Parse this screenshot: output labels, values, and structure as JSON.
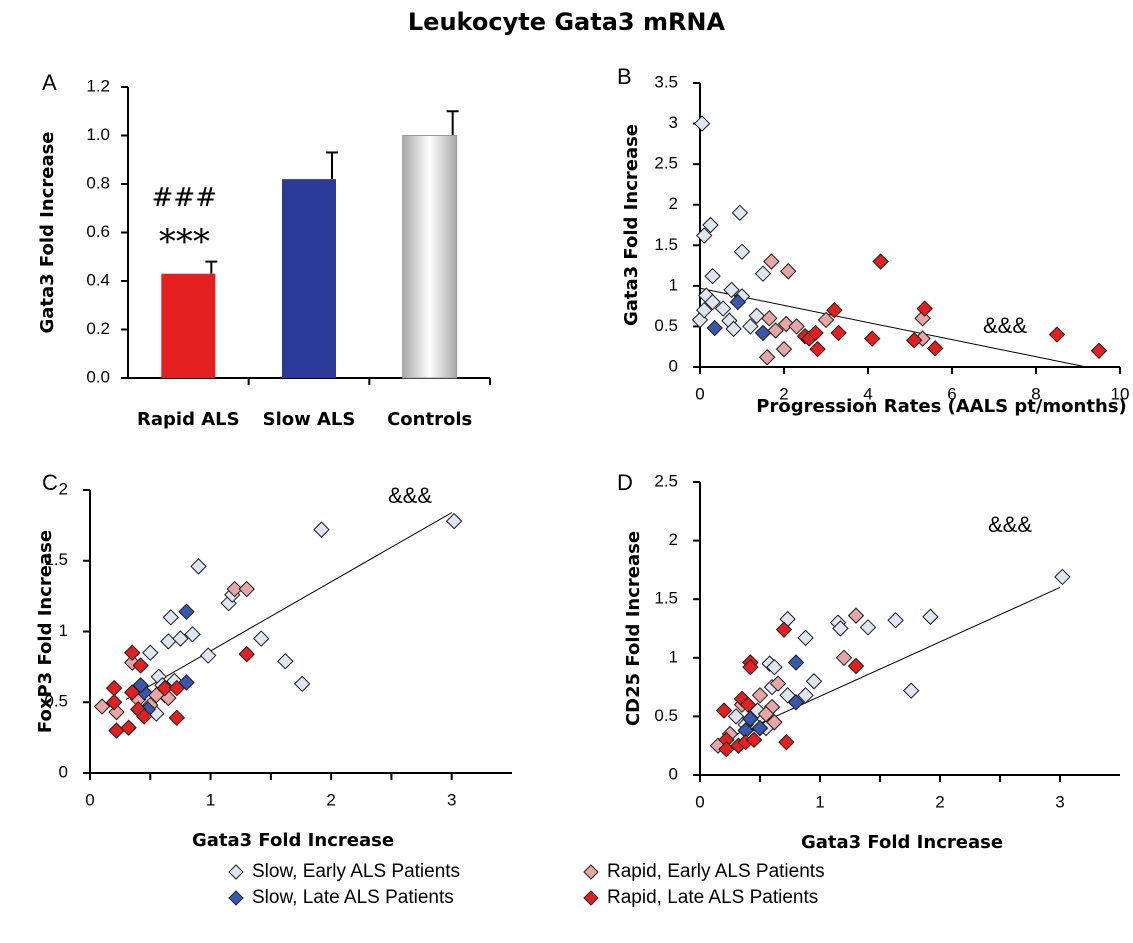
{
  "figure_title": "Leukocyte Gata3 mRNA",
  "legend": [
    {
      "label": "Slow, Early ALS Patients",
      "fill": "#dfe6f3",
      "icon": "diamond-marker-icon"
    },
    {
      "label": "Rapid, Early ALS Patients",
      "fill": "#e6a6a6",
      "icon": "diamond-marker-icon"
    },
    {
      "label": "Slow, Late ALS Patients",
      "fill": "#3a57b0",
      "icon": "diamond-marker-icon"
    },
    {
      "label": "Rapid, Late ALS Patients",
      "fill": "#e41f1f",
      "icon": "diamond-marker-icon"
    }
  ],
  "chart_data": [
    {
      "panel": "A",
      "type": "bar",
      "categories": [
        "Rapid ALS",
        "Slow ALS",
        "Controls"
      ],
      "values": [
        0.43,
        0.82,
        1.0
      ],
      "errors": [
        0.05,
        0.11,
        0.1
      ],
      "colors": [
        "#e41f1f",
        "#2b3a96",
        "#c8c8c8"
      ],
      "ylabel": "Gata3 Fold Increase",
      "ylim": [
        0,
        1.2
      ],
      "yticks": [
        "0.0",
        "0.2",
        "0.4",
        "0.6",
        "0.8",
        "1.0",
        "1.2"
      ],
      "annotations": [
        "###",
        "***"
      ],
      "grid": false
    },
    {
      "panel": "B",
      "type": "scatter",
      "xlabel": "Progression Rates (AALS pt/months)",
      "ylabel": "Gata3 Fold Increase",
      "xlim": [
        0,
        10
      ],
      "ylim": [
        0,
        3.5
      ],
      "xticks": [
        "0",
        "2",
        "4",
        "6",
        "8",
        "10"
      ],
      "yticks": [
        "0",
        "0.5",
        "1",
        "1.5",
        "2",
        "2.5",
        "3",
        "3.5"
      ],
      "annotation": "&&&",
      "trendline": [
        [
          0,
          0.97
        ],
        [
          9.2,
          0
        ]
      ],
      "series": [
        {
          "group": "slow-early",
          "points": [
            [
              0.05,
              3.0
            ],
            [
              0.1,
              1.62
            ],
            [
              0.25,
              1.75
            ],
            [
              0.95,
              1.9
            ],
            [
              0.3,
              1.12
            ],
            [
              1.0,
              1.42
            ],
            [
              1.5,
              1.15
            ],
            [
              0,
              0.58
            ],
            [
              0.1,
              0.7
            ],
            [
              0.15,
              0.88
            ],
            [
              0.3,
              0.8
            ],
            [
              0.55,
              0.72
            ],
            [
              0.7,
              0.57
            ],
            [
              0.8,
              0.47
            ],
            [
              0.75,
              0.95
            ],
            [
              1.0,
              0.87
            ],
            [
              1.2,
              0.5
            ],
            [
              1.35,
              0.63
            ]
          ]
        },
        {
          "group": "rapid-early",
          "points": [
            [
              1.7,
              1.3
            ],
            [
              2.1,
              1.18
            ],
            [
              1.6,
              0.12
            ],
            [
              2.0,
              0.22
            ],
            [
              1.65,
              0.6
            ],
            [
              1.8,
              0.45
            ],
            [
              2.05,
              0.53
            ],
            [
              2.3,
              0.5
            ],
            [
              3.0,
              0.58
            ],
            [
              5.3,
              0.6
            ],
            [
              5.3,
              0.35
            ]
          ]
        },
        {
          "group": "slow-late",
          "points": [
            [
              0.35,
              0.48
            ],
            [
              0.9,
              0.8
            ],
            [
              1.5,
              0.42
            ]
          ]
        },
        {
          "group": "rapid-late",
          "points": [
            [
              2.5,
              0.38
            ],
            [
              2.6,
              0.35
            ],
            [
              2.75,
              0.42
            ],
            [
              2.8,
              0.22
            ],
            [
              3.2,
              0.7
            ],
            [
              3.3,
              0.42
            ],
            [
              4.1,
              0.35
            ],
            [
              4.3,
              1.3
            ],
            [
              5.1,
              0.33
            ],
            [
              5.35,
              0.72
            ],
            [
              5.6,
              0.23
            ],
            [
              8.5,
              0.4
            ],
            [
              9.5,
              0.2
            ]
          ]
        }
      ]
    },
    {
      "panel": "C",
      "type": "scatter",
      "xlabel": "Gata3 Fold Increase",
      "ylabel": "FoxP3 Fold Increase",
      "xlim": [
        0,
        3.5
      ],
      "ylim": [
        0,
        2
      ],
      "xticks": [
        "0",
        "1",
        "2",
        "3"
      ],
      "yticks": [
        "0",
        "0.5",
        "1",
        "1.5",
        "2"
      ],
      "annotation": "&&&",
      "trendline": [
        [
          0.3,
          0.52
        ],
        [
          3.0,
          1.84
        ]
      ],
      "series": [
        {
          "group": "slow-early",
          "points": [
            [
              3.02,
              1.78
            ],
            [
              1.92,
              1.72
            ],
            [
              0.9,
              1.46
            ],
            [
              1.15,
              1.2
            ],
            [
              1.18,
              1.26
            ],
            [
              1.42,
              0.95
            ],
            [
              1.62,
              0.79
            ],
            [
              1.76,
              0.63
            ],
            [
              0.98,
              0.83
            ],
            [
              0.65,
              0.93
            ],
            [
              0.75,
              0.95
            ],
            [
              0.85,
              0.98
            ],
            [
              0.67,
              1.1
            ],
            [
              0.5,
              0.85
            ],
            [
              0.57,
              0.68
            ],
            [
              0.6,
              0.62
            ],
            [
              0.62,
              0.55
            ],
            [
              0.55,
              0.42
            ],
            [
              0.7,
              0.65
            ]
          ]
        },
        {
          "group": "rapid-early",
          "points": [
            [
              1.2,
              1.3
            ],
            [
              1.3,
              1.3
            ],
            [
              0.1,
              0.47
            ],
            [
              0.22,
              0.43
            ],
            [
              0.35,
              0.78
            ],
            [
              0.4,
              0.52
            ],
            [
              0.55,
              0.55
            ],
            [
              0.65,
              0.53
            ],
            [
              0.5,
              0.48
            ]
          ]
        },
        {
          "group": "slow-late",
          "points": [
            [
              0.8,
              1.14
            ],
            [
              0.8,
              0.64
            ],
            [
              0.45,
              0.57
            ],
            [
              0.48,
              0.45
            ],
            [
              0.42,
              0.62
            ]
          ]
        },
        {
          "group": "rapid-late",
          "points": [
            [
              0.35,
              0.85
            ],
            [
              0.42,
              0.76
            ],
            [
              0.2,
              0.6
            ],
            [
              0.2,
              0.5
            ],
            [
              0.22,
              0.3
            ],
            [
              0.32,
              0.32
            ],
            [
              0.35,
              0.57
            ],
            [
              0.4,
              0.45
            ],
            [
              0.45,
              0.4
            ],
            [
              0.62,
              0.6
            ],
            [
              0.72,
              0.6
            ],
            [
              0.72,
              0.39
            ],
            [
              1.3,
              0.84
            ]
          ]
        }
      ]
    },
    {
      "panel": "D",
      "type": "scatter",
      "xlabel": "Gata3 Fold Increase",
      "ylabel": "CD25 Fold Increase",
      "xlim": [
        0,
        3.5
      ],
      "ylim": [
        0,
        2.5
      ],
      "xticks": [
        "0",
        "1",
        "2",
        "3"
      ],
      "yticks": [
        "0",
        "0.5",
        "1",
        "1.5",
        "2",
        "2.5"
      ],
      "annotation": "&&&",
      "trendline": [
        [
          0.2,
          0.3
        ],
        [
          3.0,
          1.6
        ]
      ],
      "series": [
        {
          "group": "slow-early",
          "points": [
            [
              3.02,
              1.69
            ],
            [
              1.92,
              1.35
            ],
            [
              1.63,
              1.32
            ],
            [
              1.4,
              1.26
            ],
            [
              1.15,
              1.3
            ],
            [
              1.17,
              1.25
            ],
            [
              1.76,
              0.72
            ],
            [
              0.73,
              1.33
            ],
            [
              0.88,
              1.17
            ],
            [
              0.95,
              0.8
            ],
            [
              0.58,
              0.95
            ],
            [
              0.62,
              0.92
            ],
            [
              0.73,
              0.68
            ],
            [
              0.6,
              0.75
            ],
            [
              0.88,
              0.68
            ],
            [
              0.3,
              0.5
            ],
            [
              0.48,
              0.55
            ],
            [
              0.45,
              0.44
            ],
            [
              0.38,
              0.43
            ],
            [
              0.55,
              0.4
            ]
          ]
        },
        {
          "group": "rapid-early",
          "points": [
            [
              1.3,
              1.36
            ],
            [
              1.2,
              1.0
            ],
            [
              0.15,
              0.25
            ],
            [
              0.25,
              0.35
            ],
            [
              0.35,
              0.6
            ],
            [
              0.5,
              0.68
            ],
            [
              0.6,
              0.58
            ],
            [
              0.62,
              0.45
            ],
            [
              0.55,
              0.52
            ],
            [
              0.65,
              0.78
            ]
          ]
        },
        {
          "group": "slow-late",
          "points": [
            [
              0.8,
              0.96
            ],
            [
              0.8,
              0.62
            ],
            [
              0.42,
              0.48
            ],
            [
              0.5,
              0.4
            ],
            [
              0.38,
              0.38
            ]
          ]
        },
        {
          "group": "rapid-late",
          "points": [
            [
              0.42,
              0.96
            ],
            [
              0.42,
              0.92
            ],
            [
              0.7,
              1.24
            ],
            [
              1.3,
              0.93
            ],
            [
              0.35,
              0.65
            ],
            [
              0.4,
              0.6
            ],
            [
              0.2,
              0.55
            ],
            [
              0.22,
              0.3
            ],
            [
              0.22,
              0.22
            ],
            [
              0.32,
              0.25
            ],
            [
              0.38,
              0.28
            ],
            [
              0.45,
              0.3
            ],
            [
              0.72,
              0.28
            ]
          ]
        }
      ]
    }
  ]
}
